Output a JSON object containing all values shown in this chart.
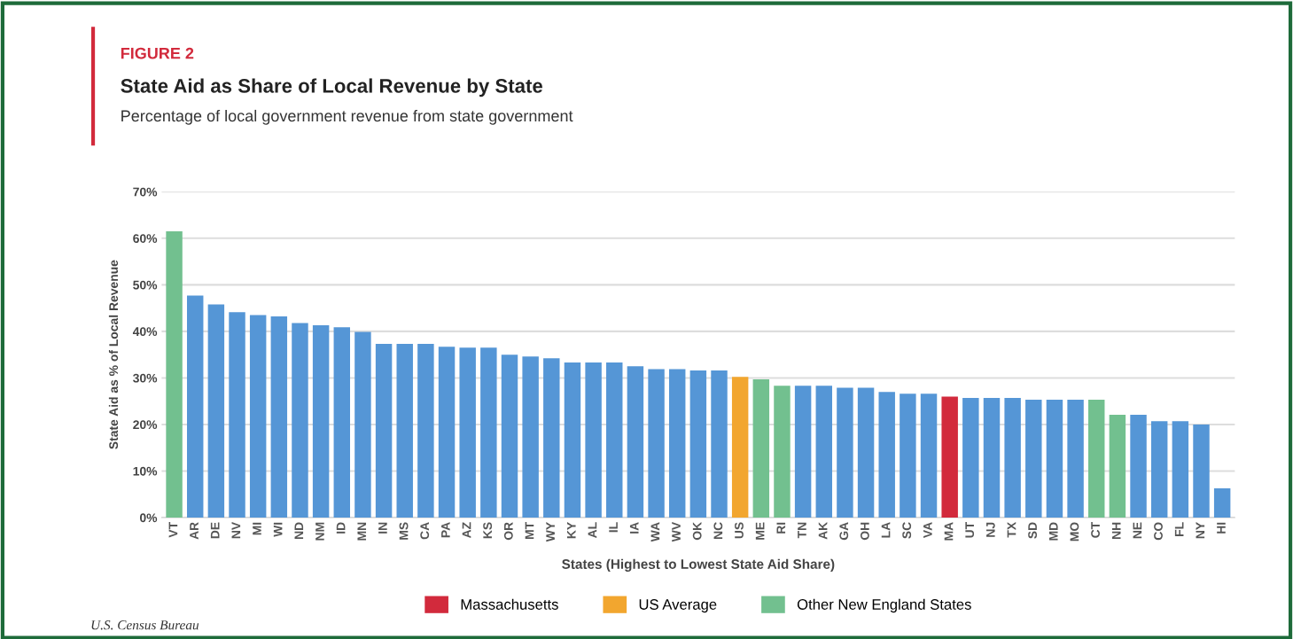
{
  "chart_data": {
    "type": "bar",
    "title": "State Aid as Share of Local Revenue by State",
    "subtitle": "Percentage of local government revenue from state government",
    "xlabel": "States (Highest to Lowest State Aid Share)",
    "ylabel": "State Aid as % of Local Revenue",
    "annotations": [
      "FIGURE 2",
      "U.S. Census Bureau"
    ],
    "categories": [
      "VT",
      "AR",
      "DE",
      "NV",
      "MI",
      "WI",
      "ND",
      "NM",
      "ID",
      "MN",
      "IN",
      "MS",
      "CA",
      "PA",
      "AZ",
      "KS",
      "OR",
      "MT",
      "WY",
      "KY",
      "AL",
      "IL",
      "IA",
      "WA",
      "WV",
      "OK",
      "NC",
      "US",
      "ME",
      "RI",
      "TN",
      "AK",
      "GA",
      "OH",
      "LA",
      "SC",
      "VA",
      "MA",
      "UT",
      "NJ",
      "TX",
      "SD",
      "MD",
      "MO",
      "CT",
      "NH",
      "NE",
      "CO",
      "FL",
      "NY",
      "HI"
    ],
    "series": [
      {
        "color": "#5596d6",
        "values": [
          null,
          47.7,
          45.8,
          44.1,
          43.5,
          43.2,
          41.8,
          41.3,
          40.9,
          39.9,
          37.3,
          37.3,
          37.3,
          36.7,
          36.5,
          36.5,
          35.0,
          34.6,
          34.2,
          33.3,
          33.3,
          33.3,
          32.5,
          31.9,
          31.9,
          31.6,
          31.6,
          null,
          null,
          null,
          28.3,
          28.3,
          27.9,
          27.9,
          27.0,
          26.6,
          26.6,
          null,
          25.7,
          25.7,
          25.7,
          25.3,
          25.3,
          25.3,
          null,
          null,
          22.1,
          20.7,
          20.7,
          20.0,
          6.3
        ]
      },
      {
        "name": "Massachusetts",
        "color": "#d22a3c",
        "values": [
          null,
          null,
          null,
          null,
          null,
          null,
          null,
          null,
          null,
          null,
          null,
          null,
          null,
          null,
          null,
          null,
          null,
          null,
          null,
          null,
          null,
          null,
          null,
          null,
          null,
          null,
          null,
          null,
          null,
          null,
          null,
          null,
          null,
          null,
          null,
          null,
          null,
          26.0,
          null,
          null,
          null,
          null,
          null,
          null,
          null,
          null,
          null,
          null,
          null,
          null,
          null
        ]
      },
      {
        "name": "US Average",
        "color": "#f2a62f",
        "values": [
          null,
          null,
          null,
          null,
          null,
          null,
          null,
          null,
          null,
          null,
          null,
          null,
          null,
          null,
          null,
          null,
          null,
          null,
          null,
          null,
          null,
          null,
          null,
          null,
          null,
          null,
          null,
          30.2,
          null,
          null,
          null,
          null,
          null,
          null,
          null,
          null,
          null,
          null,
          null,
          null,
          null,
          null,
          null,
          null,
          null,
          null,
          null,
          null,
          null,
          null,
          null
        ]
      },
      {
        "name": "Other New England States",
        "color": "#72c08f",
        "values": [
          61.5,
          null,
          null,
          null,
          null,
          null,
          null,
          null,
          null,
          null,
          null,
          null,
          null,
          null,
          null,
          null,
          null,
          null,
          null,
          null,
          null,
          null,
          null,
          null,
          null,
          null,
          null,
          null,
          29.7,
          28.3,
          null,
          null,
          null,
          null,
          null,
          null,
          null,
          null,
          null,
          null,
          null,
          null,
          null,
          null,
          25.3,
          22.1,
          null,
          null,
          null,
          null,
          null
        ]
      }
    ],
    "ylim": [
      0,
      70
    ],
    "yticks": [
      {
        "value": 0,
        "label": "0%"
      },
      {
        "value": 10,
        "label": "10%"
      },
      {
        "value": 20,
        "label": "20%"
      },
      {
        "value": 30,
        "label": "30%"
      },
      {
        "value": 40,
        "label": "40%"
      },
      {
        "value": 50,
        "label": "50%"
      },
      {
        "value": 60,
        "label": "60%"
      },
      {
        "value": 70,
        "label": "70%"
      }
    ],
    "grid": "y",
    "legend": "bottom"
  }
}
